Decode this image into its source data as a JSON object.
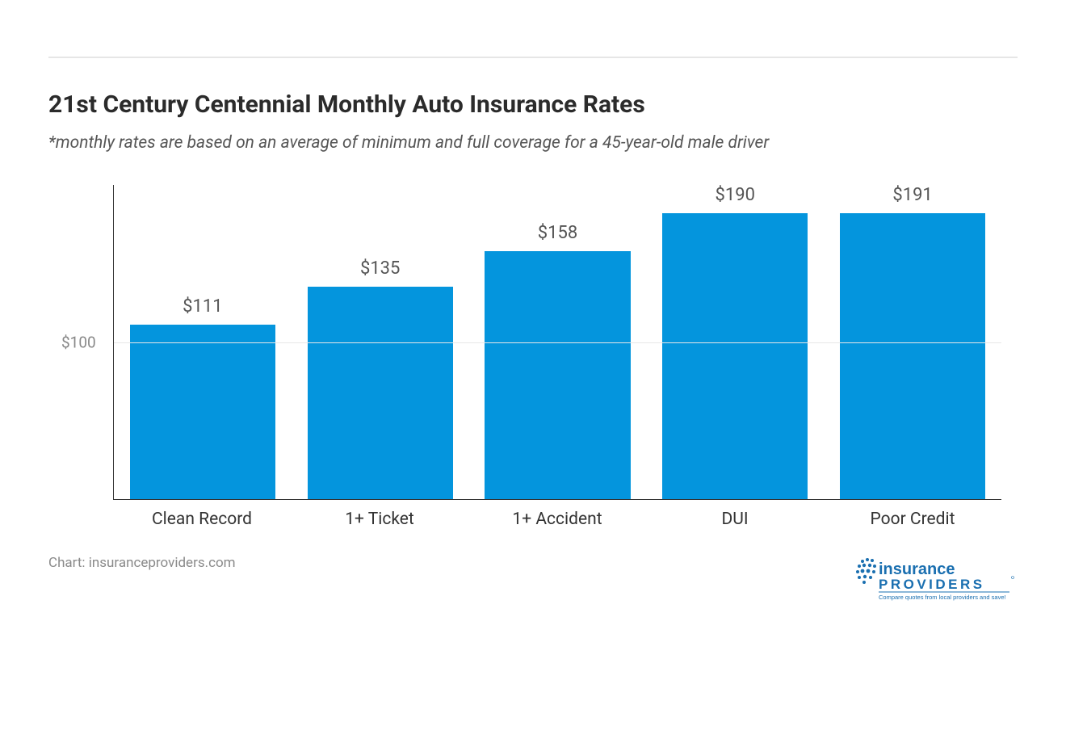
{
  "title": "21st Century Centennial Monthly Auto Insurance Rates",
  "subtitle": "*monthly rates are based on an average of minimum and full coverage for a 45-year-old male driver",
  "chart": {
    "type": "bar",
    "categories": [
      "Clean Record",
      "1+ Ticket",
      "1+ Accident",
      "DUI",
      "Poor Credit"
    ],
    "values": [
      111,
      135,
      158,
      190,
      191
    ],
    "value_labels": [
      "$111",
      "$135",
      "$158",
      "$190",
      "$191"
    ],
    "bar_color": "#0495dd",
    "ylim": [
      0,
      200
    ],
    "yticks": [
      100
    ],
    "ytick_labels": [
      "$100"
    ],
    "title_fontsize": 30,
    "title_color": "#2b2b2b",
    "subtitle_fontsize": 21,
    "subtitle_color": "#555555",
    "value_label_fontsize": 22,
    "value_label_color": "#555555",
    "xlabel_fontsize": 21,
    "xlabel_color": "#333333",
    "ylabel_fontsize": 19,
    "ylabel_color": "#888888",
    "axis_color": "#333333",
    "grid_color": "#e8e8e8",
    "background_color": "#ffffff",
    "bar_width_ratio": 0.82
  },
  "attribution": "Chart: insuranceproviders.com",
  "logo": {
    "word1": "insurance",
    "word2": "PROVIDERS",
    "tagline": "Compare quotes from local providers and save!",
    "color": "#1a6fb0",
    "dot_color": "#1a6fb0"
  },
  "divider_color": "#e6e6e6"
}
